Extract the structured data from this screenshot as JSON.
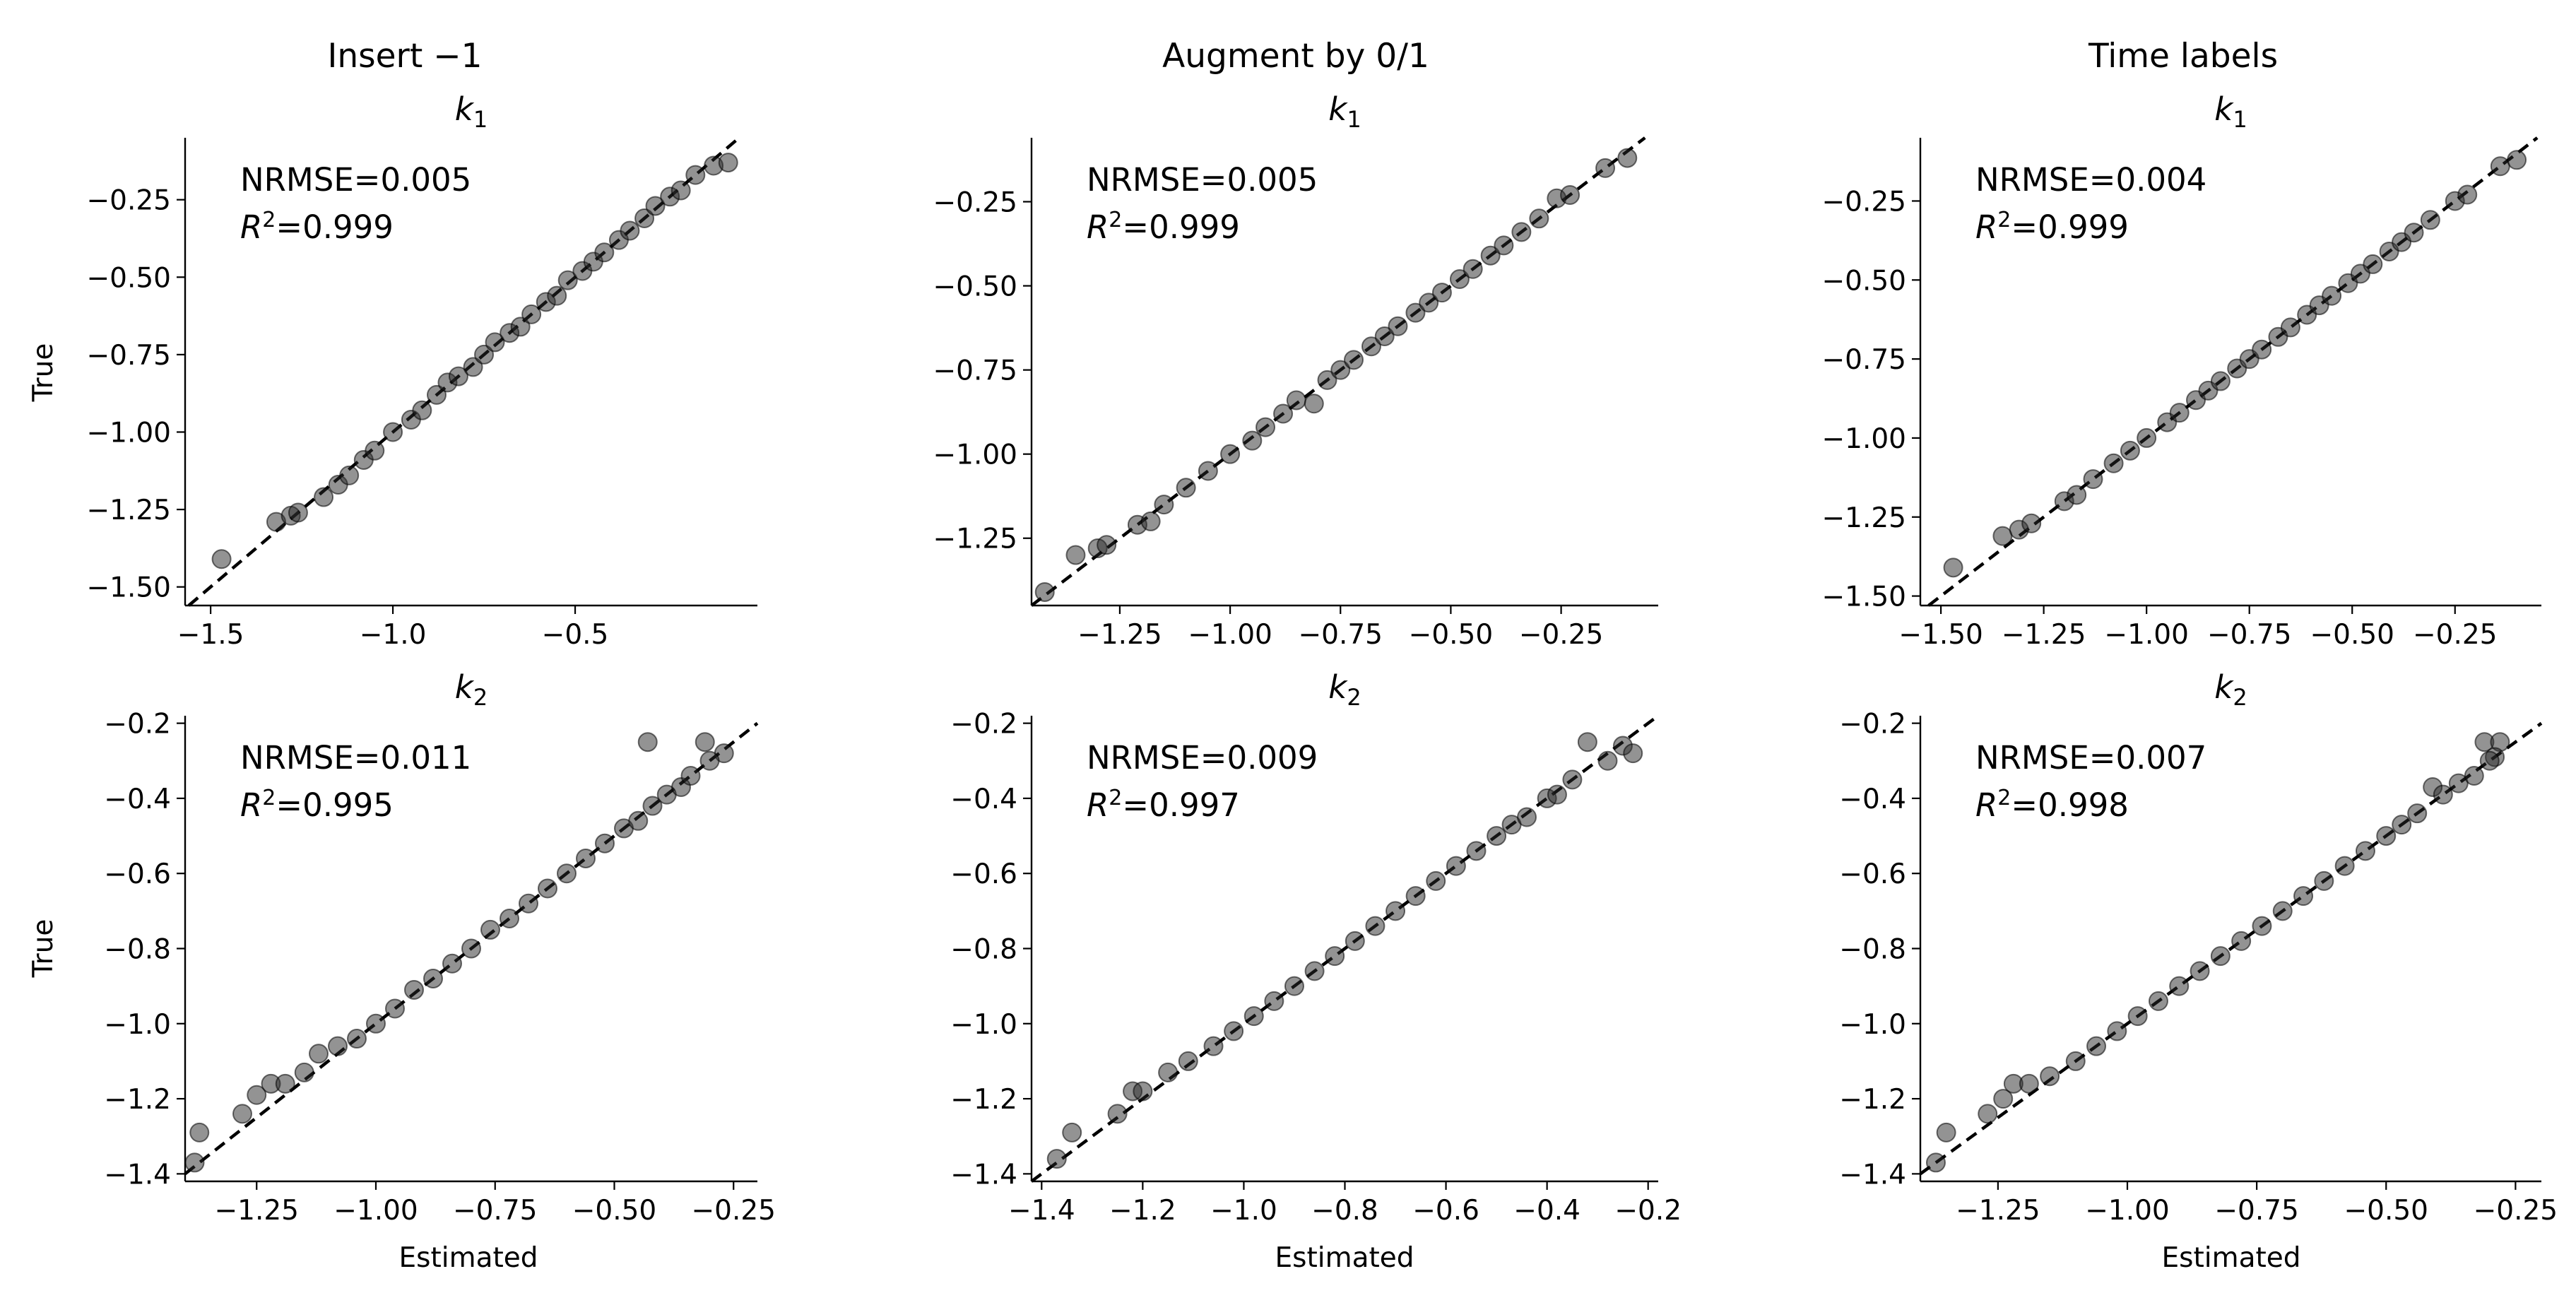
{
  "columns": [
    {
      "title": "Insert −1"
    },
    {
      "title": "Augment by 0/1"
    },
    {
      "title": "Time labels"
    }
  ],
  "labels": {
    "y_label": "True",
    "x_label": "Estimated",
    "nrmse_prefix": "NRMSE=",
    "r2_symbol": "R",
    "r2_power": "2",
    "r2_suffix": "="
  },
  "chart_data": [
    {
      "type": "scatter",
      "param_symbol": "k",
      "param_index": "1",
      "xlim": [
        -1.57,
        -0.0
      ],
      "ylim": [
        -1.56,
        -0.05
      ],
      "xticks": [
        -1.5,
        -1.0,
        -0.5
      ],
      "xticklabels": [
        "−1.5",
        "−1.0",
        "−0.5"
      ],
      "yticks": [
        -1.5,
        -1.25,
        -1.0,
        -0.75,
        -0.5,
        -0.25
      ],
      "yticklabels": [
        "−1.50",
        "−1.25",
        "−1.00",
        "−0.75",
        "−0.50",
        "−0.25"
      ],
      "nrmse": "0.005",
      "r2": "0.999",
      "points": [
        [
          -1.47,
          -1.41
        ],
        [
          -1.32,
          -1.29
        ],
        [
          -1.28,
          -1.27
        ],
        [
          -1.26,
          -1.26
        ],
        [
          -1.19,
          -1.21
        ],
        [
          -1.15,
          -1.17
        ],
        [
          -1.12,
          -1.14
        ],
        [
          -1.08,
          -1.09
        ],
        [
          -1.05,
          -1.06
        ],
        [
          -1.0,
          -1.0
        ],
        [
          -0.95,
          -0.96
        ],
        [
          -0.92,
          -0.93
        ],
        [
          -0.88,
          -0.88
        ],
        [
          -0.85,
          -0.84
        ],
        [
          -0.82,
          -0.82
        ],
        [
          -0.78,
          -0.79
        ],
        [
          -0.75,
          -0.75
        ],
        [
          -0.72,
          -0.71
        ],
        [
          -0.68,
          -0.68
        ],
        [
          -0.65,
          -0.66
        ],
        [
          -0.62,
          -0.62
        ],
        [
          -0.58,
          -0.58
        ],
        [
          -0.55,
          -0.56
        ],
        [
          -0.52,
          -0.51
        ],
        [
          -0.48,
          -0.48
        ],
        [
          -0.45,
          -0.45
        ],
        [
          -0.42,
          -0.42
        ],
        [
          -0.38,
          -0.38
        ],
        [
          -0.35,
          -0.35
        ],
        [
          -0.31,
          -0.31
        ],
        [
          -0.28,
          -0.27
        ],
        [
          -0.24,
          -0.24
        ],
        [
          -0.21,
          -0.22
        ],
        [
          -0.17,
          -0.17
        ],
        [
          -0.12,
          -0.14
        ],
        [
          -0.08,
          -0.13
        ]
      ]
    },
    {
      "type": "scatter",
      "param_symbol": "k",
      "param_index": "1",
      "xlim": [
        -1.45,
        -0.03
      ],
      "ylim": [
        -1.45,
        -0.06
      ],
      "xticks": [
        -1.25,
        -1.0,
        -0.75,
        -0.5,
        -0.25
      ],
      "xticklabels": [
        "−1.25",
        "−1.00",
        "−0.75",
        "−0.50",
        "−0.25"
      ],
      "yticks": [
        -1.25,
        -1.0,
        -0.75,
        -0.5,
        -0.25
      ],
      "yticklabels": [
        "−1.25",
        "−1.00",
        "−0.75",
        "−0.50",
        "−0.25"
      ],
      "nrmse": "0.005",
      "r2": "0.999",
      "points": [
        [
          -1.42,
          -1.41
        ],
        [
          -1.35,
          -1.3
        ],
        [
          -1.3,
          -1.28
        ],
        [
          -1.28,
          -1.27
        ],
        [
          -1.21,
          -1.21
        ],
        [
          -1.18,
          -1.2
        ],
        [
          -1.15,
          -1.15
        ],
        [
          -1.1,
          -1.1
        ],
        [
          -1.05,
          -1.05
        ],
        [
          -1.0,
          -1.0
        ],
        [
          -0.95,
          -0.96
        ],
        [
          -0.92,
          -0.92
        ],
        [
          -0.88,
          -0.88
        ],
        [
          -0.85,
          -0.84
        ],
        [
          -0.81,
          -0.85
        ],
        [
          -0.78,
          -0.78
        ],
        [
          -0.75,
          -0.75
        ],
        [
          -0.72,
          -0.72
        ],
        [
          -0.68,
          -0.68
        ],
        [
          -0.65,
          -0.65
        ],
        [
          -0.62,
          -0.62
        ],
        [
          -0.58,
          -0.58
        ],
        [
          -0.55,
          -0.55
        ],
        [
          -0.52,
          -0.52
        ],
        [
          -0.48,
          -0.48
        ],
        [
          -0.45,
          -0.45
        ],
        [
          -0.41,
          -0.41
        ],
        [
          -0.38,
          -0.38
        ],
        [
          -0.34,
          -0.34
        ],
        [
          -0.3,
          -0.3
        ],
        [
          -0.26,
          -0.24
        ],
        [
          -0.23,
          -0.23
        ],
        [
          -0.15,
          -0.15
        ],
        [
          -0.1,
          -0.12
        ]
      ]
    },
    {
      "type": "scatter",
      "param_symbol": "k",
      "param_index": "1",
      "xlim": [
        -1.55,
        -0.04
      ],
      "ylim": [
        -1.53,
        -0.05
      ],
      "xticks": [
        -1.5,
        -1.25,
        -1.0,
        -0.75,
        -0.5,
        -0.25
      ],
      "xticklabels": [
        "−1.50",
        "−1.25",
        "−1.00",
        "−0.75",
        "−0.50",
        "−0.25"
      ],
      "yticks": [
        -1.5,
        -1.25,
        -1.0,
        -0.75,
        -0.5,
        -0.25
      ],
      "yticklabels": [
        "−1.50",
        "−1.25",
        "−1.00",
        "−0.75",
        "−0.50",
        "−0.25"
      ],
      "nrmse": "0.004",
      "r2": "0.999",
      "points": [
        [
          -1.47,
          -1.41
        ],
        [
          -1.35,
          -1.31
        ],
        [
          -1.31,
          -1.29
        ],
        [
          -1.28,
          -1.27
        ],
        [
          -1.2,
          -1.2
        ],
        [
          -1.17,
          -1.18
        ],
        [
          -1.13,
          -1.13
        ],
        [
          -1.08,
          -1.08
        ],
        [
          -1.04,
          -1.04
        ],
        [
          -1.0,
          -1.0
        ],
        [
          -0.95,
          -0.95
        ],
        [
          -0.92,
          -0.92
        ],
        [
          -0.88,
          -0.88
        ],
        [
          -0.85,
          -0.85
        ],
        [
          -0.82,
          -0.82
        ],
        [
          -0.78,
          -0.78
        ],
        [
          -0.75,
          -0.75
        ],
        [
          -0.72,
          -0.72
        ],
        [
          -0.68,
          -0.68
        ],
        [
          -0.65,
          -0.65
        ],
        [
          -0.61,
          -0.61
        ],
        [
          -0.58,
          -0.58
        ],
        [
          -0.55,
          -0.55
        ],
        [
          -0.51,
          -0.51
        ],
        [
          -0.48,
          -0.48
        ],
        [
          -0.45,
          -0.45
        ],
        [
          -0.41,
          -0.41
        ],
        [
          -0.38,
          -0.38
        ],
        [
          -0.35,
          -0.35
        ],
        [
          -0.31,
          -0.31
        ],
        [
          -0.25,
          -0.25
        ],
        [
          -0.22,
          -0.23
        ],
        [
          -0.14,
          -0.14
        ],
        [
          -0.1,
          -0.12
        ]
      ]
    },
    {
      "type": "scatter",
      "param_symbol": "k",
      "param_index": "2",
      "xlim": [
        -1.4,
        -0.2
      ],
      "ylim": [
        -1.42,
        -0.18
      ],
      "xticks": [
        -1.25,
        -1.0,
        -0.75,
        -0.5,
        -0.25
      ],
      "xticklabels": [
        "−1.25",
        "−1.00",
        "−0.75",
        "−0.50",
        "−0.25"
      ],
      "yticks": [
        -1.4,
        -1.2,
        -1.0,
        -0.8,
        -0.6,
        -0.4,
        -0.2
      ],
      "yticklabels": [
        "−1.4",
        "−1.2",
        "−1.0",
        "−0.8",
        "−0.6",
        "−0.4",
        "−0.2"
      ],
      "nrmse": "0.011",
      "r2": "0.995",
      "points": [
        [
          -1.38,
          -1.37
        ],
        [
          -1.37,
          -1.29
        ],
        [
          -1.28,
          -1.24
        ],
        [
          -1.25,
          -1.19
        ],
        [
          -1.22,
          -1.16
        ],
        [
          -1.19,
          -1.16
        ],
        [
          -1.15,
          -1.13
        ],
        [
          -1.12,
          -1.08
        ],
        [
          -1.08,
          -1.06
        ],
        [
          -1.04,
          -1.04
        ],
        [
          -1.0,
          -1.0
        ],
        [
          -0.96,
          -0.96
        ],
        [
          -0.92,
          -0.91
        ],
        [
          -0.88,
          -0.88
        ],
        [
          -0.84,
          -0.84
        ],
        [
          -0.8,
          -0.8
        ],
        [
          -0.76,
          -0.75
        ],
        [
          -0.72,
          -0.72
        ],
        [
          -0.68,
          -0.68
        ],
        [
          -0.64,
          -0.64
        ],
        [
          -0.6,
          -0.6
        ],
        [
          -0.56,
          -0.56
        ],
        [
          -0.52,
          -0.52
        ],
        [
          -0.48,
          -0.48
        ],
        [
          -0.45,
          -0.46
        ],
        [
          -0.42,
          -0.42
        ],
        [
          -0.39,
          -0.39
        ],
        [
          -0.36,
          -0.37
        ],
        [
          -0.34,
          -0.34
        ],
        [
          -0.43,
          -0.25
        ],
        [
          -0.31,
          -0.25
        ],
        [
          -0.27,
          -0.28
        ],
        [
          -0.3,
          -0.3
        ]
      ]
    },
    {
      "type": "scatter",
      "param_symbol": "k",
      "param_index": "2",
      "xlim": [
        -1.42,
        -0.18
      ],
      "ylim": [
        -1.42,
        -0.18
      ],
      "xticks": [
        -1.4,
        -1.2,
        -1.0,
        -0.8,
        -0.6,
        -0.4,
        -0.2
      ],
      "xticklabels": [
        "−1.4",
        "−1.2",
        "−1.0",
        "−0.8",
        "−0.6",
        "−0.4",
        "−0.2"
      ],
      "yticks": [
        -1.4,
        -1.2,
        -1.0,
        -0.8,
        -0.6,
        -0.4,
        -0.2
      ],
      "yticklabels": [
        "−1.4",
        "−1.2",
        "−1.0",
        "−0.8",
        "−0.6",
        "−0.4",
        "−0.2"
      ],
      "nrmse": "0.009",
      "r2": "0.997",
      "points": [
        [
          -1.37,
          -1.36
        ],
        [
          -1.34,
          -1.29
        ],
        [
          -1.25,
          -1.24
        ],
        [
          -1.22,
          -1.18
        ],
        [
          -1.2,
          -1.18
        ],
        [
          -1.15,
          -1.13
        ],
        [
          -1.11,
          -1.1
        ],
        [
          -1.06,
          -1.06
        ],
        [
          -1.02,
          -1.02
        ],
        [
          -0.98,
          -0.98
        ],
        [
          -0.94,
          -0.94
        ],
        [
          -0.9,
          -0.9
        ],
        [
          -0.86,
          -0.86
        ],
        [
          -0.82,
          -0.82
        ],
        [
          -0.78,
          -0.78
        ],
        [
          -0.74,
          -0.74
        ],
        [
          -0.7,
          -0.7
        ],
        [
          -0.66,
          -0.66
        ],
        [
          -0.62,
          -0.62
        ],
        [
          -0.58,
          -0.58
        ],
        [
          -0.54,
          -0.54
        ],
        [
          -0.5,
          -0.5
        ],
        [
          -0.47,
          -0.47
        ],
        [
          -0.44,
          -0.45
        ],
        [
          -0.4,
          -0.4
        ],
        [
          -0.38,
          -0.39
        ],
        [
          -0.35,
          -0.35
        ],
        [
          -0.32,
          -0.25
        ],
        [
          -0.28,
          -0.3
        ],
        [
          -0.25,
          -0.26
        ],
        [
          -0.23,
          -0.28
        ]
      ]
    },
    {
      "type": "scatter",
      "param_symbol": "k",
      "param_index": "2",
      "xlim": [
        -1.4,
        -0.2
      ],
      "ylim": [
        -1.42,
        -0.18
      ],
      "xticks": [
        -1.25,
        -1.0,
        -0.75,
        -0.5,
        -0.25
      ],
      "xticklabels": [
        "−1.25",
        "−1.00",
        "−0.75",
        "−0.50",
        "−0.25"
      ],
      "yticks": [
        -1.4,
        -1.2,
        -1.0,
        -0.8,
        -0.6,
        -0.4,
        -0.2
      ],
      "yticklabels": [
        "−1.4",
        "−1.2",
        "−1.0",
        "−0.8",
        "−0.6",
        "−0.4",
        "−0.2"
      ],
      "nrmse": "0.007",
      "r2": "0.998",
      "points": [
        [
          -1.37,
          -1.37
        ],
        [
          -1.35,
          -1.29
        ],
        [
          -1.27,
          -1.24
        ],
        [
          -1.24,
          -1.2
        ],
        [
          -1.22,
          -1.16
        ],
        [
          -1.19,
          -1.16
        ],
        [
          -1.15,
          -1.14
        ],
        [
          -1.1,
          -1.1
        ],
        [
          -1.06,
          -1.06
        ],
        [
          -1.02,
          -1.02
        ],
        [
          -0.98,
          -0.98
        ],
        [
          -0.94,
          -0.94
        ],
        [
          -0.9,
          -0.9
        ],
        [
          -0.86,
          -0.86
        ],
        [
          -0.82,
          -0.82
        ],
        [
          -0.78,
          -0.78
        ],
        [
          -0.74,
          -0.74
        ],
        [
          -0.7,
          -0.7
        ],
        [
          -0.66,
          -0.66
        ],
        [
          -0.62,
          -0.62
        ],
        [
          -0.58,
          -0.58
        ],
        [
          -0.54,
          -0.54
        ],
        [
          -0.5,
          -0.5
        ],
        [
          -0.47,
          -0.47
        ],
        [
          -0.44,
          -0.44
        ],
        [
          -0.41,
          -0.37
        ],
        [
          -0.39,
          -0.39
        ],
        [
          -0.36,
          -0.36
        ],
        [
          -0.33,
          -0.34
        ],
        [
          -0.31,
          -0.25
        ],
        [
          -0.28,
          -0.25
        ],
        [
          -0.29,
          -0.29
        ],
        [
          -0.3,
          -0.3
        ]
      ]
    }
  ]
}
